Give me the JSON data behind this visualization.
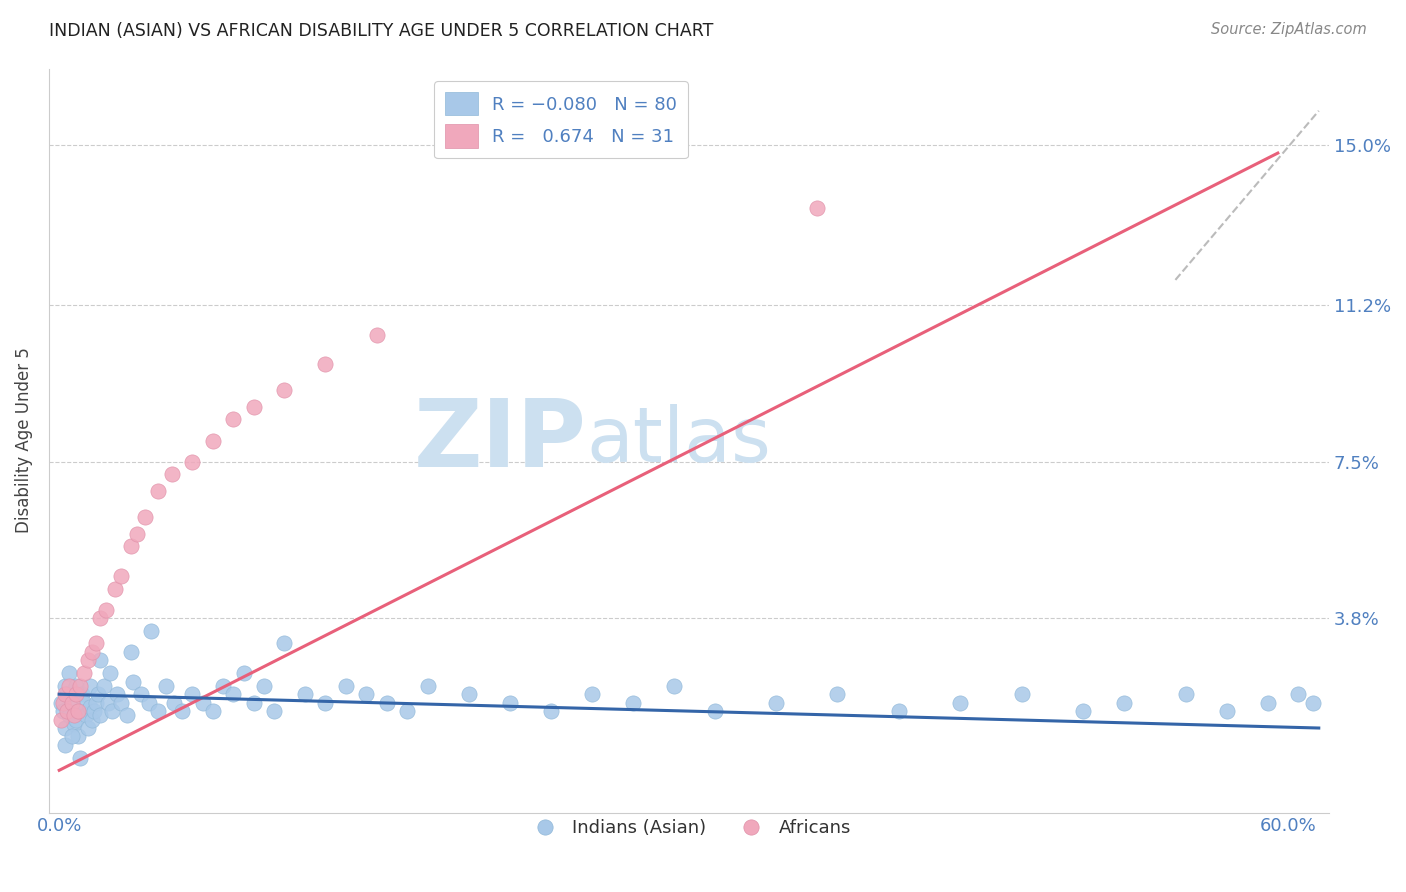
{
  "title": "INDIAN (ASIAN) VS AFRICAN DISABILITY AGE UNDER 5 CORRELATION CHART",
  "source": "Source: ZipAtlas.com",
  "ylabel": "Disability Age Under 5",
  "y_tick_labels": [
    "3.8%",
    "7.5%",
    "11.2%",
    "15.0%"
  ],
  "y_tick_values": [
    0.038,
    0.075,
    0.112,
    0.15
  ],
  "xlim": [
    -0.005,
    0.62
  ],
  "ylim": [
    -0.008,
    0.168
  ],
  "blue_line_color": "#3465a8",
  "pink_line_color": "#e8607a",
  "scatter_blue_face": "#a8c8e8",
  "scatter_pink_face": "#f0a8bc",
  "scatter_blue_edge": "#90b8d8",
  "scatter_pink_edge": "#e090a8",
  "watermark_zip": "ZIP",
  "watermark_atlas": "atlas",
  "watermark_color": "#cce0f0",
  "grid_color": "#cccccc",
  "background_color": "#ffffff",
  "blue_line_x": [
    0.0,
    0.615
  ],
  "blue_line_y": [
    0.02,
    0.012
  ],
  "pink_line_x": [
    0.0,
    0.595
  ],
  "pink_line_y": [
    0.002,
    0.148
  ],
  "dash_line_x": [
    0.545,
    0.615
  ],
  "dash_line_y": [
    0.118,
    0.158
  ],
  "indians_x": [
    0.001,
    0.002,
    0.003,
    0.003,
    0.004,
    0.005,
    0.005,
    0.006,
    0.007,
    0.008,
    0.008,
    0.009,
    0.01,
    0.011,
    0.012,
    0.013,
    0.014,
    0.015,
    0.015,
    0.016,
    0.017,
    0.018,
    0.019,
    0.02,
    0.022,
    0.024,
    0.026,
    0.028,
    0.03,
    0.033,
    0.036,
    0.04,
    0.044,
    0.048,
    0.052,
    0.056,
    0.06,
    0.065,
    0.07,
    0.075,
    0.08,
    0.085,
    0.09,
    0.095,
    0.1,
    0.105,
    0.11,
    0.12,
    0.13,
    0.14,
    0.15,
    0.16,
    0.17,
    0.18,
    0.2,
    0.22,
    0.24,
    0.26,
    0.28,
    0.3,
    0.32,
    0.35,
    0.38,
    0.41,
    0.44,
    0.47,
    0.5,
    0.52,
    0.55,
    0.57,
    0.59,
    0.605,
    0.612,
    0.003,
    0.006,
    0.01,
    0.02,
    0.025,
    0.035,
    0.045
  ],
  "indians_y": [
    0.018,
    0.016,
    0.022,
    0.012,
    0.02,
    0.025,
    0.015,
    0.018,
    0.013,
    0.014,
    0.022,
    0.01,
    0.016,
    0.02,
    0.018,
    0.015,
    0.012,
    0.017,
    0.022,
    0.014,
    0.016,
    0.018,
    0.02,
    0.015,
    0.022,
    0.018,
    0.016,
    0.02,
    0.018,
    0.015,
    0.023,
    0.02,
    0.018,
    0.016,
    0.022,
    0.018,
    0.016,
    0.02,
    0.018,
    0.016,
    0.022,
    0.02,
    0.025,
    0.018,
    0.022,
    0.016,
    0.032,
    0.02,
    0.018,
    0.022,
    0.02,
    0.018,
    0.016,
    0.022,
    0.02,
    0.018,
    0.016,
    0.02,
    0.018,
    0.022,
    0.016,
    0.018,
    0.02,
    0.016,
    0.018,
    0.02,
    0.016,
    0.018,
    0.02,
    0.016,
    0.018,
    0.02,
    0.018,
    0.008,
    0.01,
    0.005,
    0.028,
    0.025,
    0.03,
    0.035
  ],
  "africans_x": [
    0.001,
    0.002,
    0.003,
    0.004,
    0.005,
    0.006,
    0.007,
    0.008,
    0.009,
    0.01,
    0.012,
    0.014,
    0.016,
    0.018,
    0.02,
    0.023,
    0.027,
    0.03,
    0.035,
    0.038,
    0.042,
    0.048,
    0.055,
    0.065,
    0.075,
    0.085,
    0.095,
    0.11,
    0.13,
    0.155,
    0.37
  ],
  "africans_y": [
    0.014,
    0.018,
    0.02,
    0.016,
    0.022,
    0.018,
    0.015,
    0.02,
    0.016,
    0.022,
    0.025,
    0.028,
    0.03,
    0.032,
    0.038,
    0.04,
    0.045,
    0.048,
    0.055,
    0.058,
    0.062,
    0.068,
    0.072,
    0.075,
    0.08,
    0.085,
    0.088,
    0.092,
    0.098,
    0.105,
    0.135
  ]
}
